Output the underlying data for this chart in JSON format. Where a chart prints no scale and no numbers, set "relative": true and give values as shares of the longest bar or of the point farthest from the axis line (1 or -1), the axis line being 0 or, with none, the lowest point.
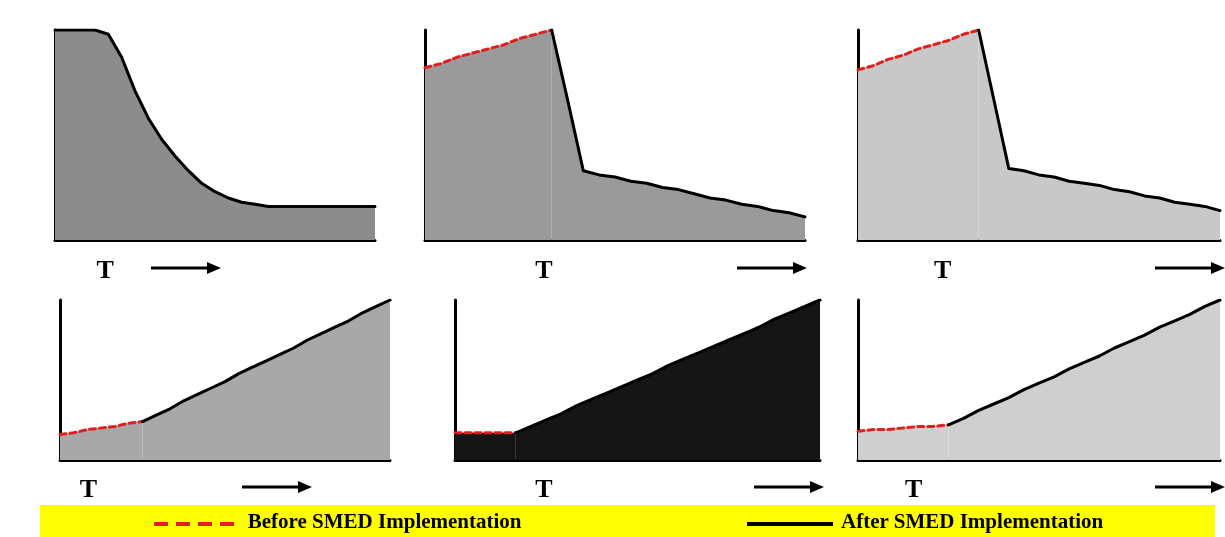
{
  "chart_data": [
    {
      "type": "area",
      "relative": true,
      "xlabel": "T",
      "grid": false,
      "legend": false,
      "categories": [
        null,
        null,
        null,
        null,
        null,
        null,
        null,
        null,
        null,
        null,
        null,
        null,
        null,
        null,
        null,
        null,
        null,
        null,
        null,
        null,
        null,
        null,
        null,
        null,
        null
      ],
      "series": [
        {
          "color": "#000000",
          "line_style": "solid",
          "values": [
            1,
            1,
            1,
            1,
            0.98,
            0.87,
            0.71,
            0.58,
            0.48,
            0.4,
            0.33,
            0.27,
            0.23,
            0.2,
            0.18,
            0.17,
            0.16,
            0.16,
            0.16,
            0.16,
            0.16,
            0.16,
            0.16,
            0.16,
            0.16
          ]
        }
      ]
    },
    {
      "type": "area",
      "relative": true,
      "xlabel": "T",
      "grid": false,
      "legend": false,
      "categories": [
        null,
        null,
        null,
        null,
        null,
        null,
        null,
        null,
        null,
        null,
        null,
        null,
        null,
        null,
        null,
        null,
        null,
        null,
        null,
        null,
        null,
        null,
        null,
        null,
        null
      ],
      "series": [
        {
          "color": "#e02020",
          "line_style": "dashed",
          "values": [
            0.82,
            0.84,
            0.87,
            0.89,
            0.91,
            0.93,
            0.96,
            0.98,
            1,
            null,
            null,
            null,
            null,
            null,
            null,
            null,
            null,
            null,
            null,
            null,
            null,
            null,
            null,
            null,
            null
          ]
        },
        {
          "color": "#000000",
          "line_style": "solid",
          "values": [
            null,
            null,
            null,
            null,
            null,
            null,
            null,
            null,
            1,
            0.67,
            0.33,
            0.31,
            0.3,
            0.28,
            0.27,
            0.25,
            0.24,
            0.22,
            0.2,
            0.19,
            0.17,
            0.16,
            0.14,
            0.13,
            0.11
          ]
        }
      ]
    },
    {
      "type": "area",
      "relative": true,
      "xlabel": "T",
      "grid": false,
      "legend": false,
      "categories": [
        null,
        null,
        null,
        null,
        null,
        null,
        null,
        null,
        null,
        null,
        null,
        null,
        null,
        null,
        null,
        null,
        null,
        null,
        null,
        null,
        null,
        null,
        null,
        null,
        null
      ],
      "series": [
        {
          "color": "#e02020",
          "line_style": "dashed",
          "values": [
            0.81,
            0.83,
            0.86,
            0.88,
            0.91,
            0.93,
            0.95,
            0.98,
            1,
            null,
            null,
            null,
            null,
            null,
            null,
            null,
            null,
            null,
            null,
            null,
            null,
            null,
            null,
            null,
            null
          ]
        },
        {
          "color": "#000000",
          "line_style": "solid",
          "values": [
            null,
            null,
            null,
            null,
            null,
            null,
            null,
            null,
            1,
            0.67,
            0.34,
            0.33,
            0.31,
            0.3,
            0.28,
            0.27,
            0.26,
            0.24,
            0.23,
            0.21,
            0.2,
            0.18,
            0.17,
            0.16,
            0.14
          ]
        }
      ]
    },
    {
      "type": "area",
      "relative": true,
      "xlabel": "T",
      "grid": false,
      "legend": false,
      "categories": [
        null,
        null,
        null,
        null,
        null,
        null,
        null,
        null,
        null,
        null,
        null,
        null,
        null,
        null,
        null,
        null,
        null,
        null,
        null,
        null,
        null,
        null,
        null,
        null,
        null
      ],
      "series": [
        {
          "color": "#e02020",
          "line_style": "dashed",
          "values": [
            0.16,
            0.17,
            0.19,
            0.2,
            0.21,
            0.23,
            0.24,
            null,
            null,
            null,
            null,
            null,
            null,
            null,
            null,
            null,
            null,
            null,
            null,
            null,
            null,
            null,
            null,
            null,
            null
          ]
        },
        {
          "color": "#000000",
          "line_style": "solid",
          "values": [
            null,
            null,
            null,
            null,
            null,
            null,
            0.24,
            0.28,
            0.32,
            0.37,
            0.41,
            0.45,
            0.49,
            0.54,
            0.58,
            0.62,
            0.66,
            0.7,
            0.75,
            0.79,
            0.83,
            0.87,
            0.92,
            0.96,
            1
          ]
        }
      ]
    },
    {
      "type": "area",
      "relative": true,
      "xlabel": "T",
      "grid": false,
      "legend": false,
      "categories": [
        null,
        null,
        null,
        null,
        null,
        null,
        null,
        null,
        null,
        null,
        null,
        null,
        null,
        null,
        null,
        null,
        null,
        null,
        null,
        null,
        null,
        null,
        null,
        null,
        null
      ],
      "series": [
        {
          "color": "#e02020",
          "line_style": "dashed",
          "values": [
            0.17,
            0.17,
            0.17,
            0.17,
            0.17,
            null,
            null,
            null,
            null,
            null,
            null,
            null,
            null,
            null,
            null,
            null,
            null,
            null,
            null,
            null,
            null,
            null,
            null,
            null,
            null
          ]
        },
        {
          "color": "#000000",
          "line_style": "solid",
          "values": [
            null,
            null,
            null,
            null,
            0.17,
            0.21,
            0.25,
            0.29,
            0.34,
            0.38,
            0.42,
            0.46,
            0.5,
            0.54,
            0.59,
            0.63,
            0.67,
            0.71,
            0.75,
            0.79,
            0.83,
            0.88,
            0.92,
            0.96,
            1
          ]
        }
      ]
    },
    {
      "type": "area",
      "relative": true,
      "xlabel": "T",
      "grid": false,
      "legend": "bottom",
      "categories": [
        null,
        null,
        null,
        null,
        null,
        null,
        null,
        null,
        null,
        null,
        null,
        null,
        null,
        null,
        null,
        null,
        null,
        null,
        null,
        null,
        null,
        null,
        null,
        null,
        null
      ],
      "series": [
        {
          "name": "Before SMED Implementation",
          "color": "#e02020",
          "line_style": "dashed",
          "values": [
            0.18,
            0.19,
            0.19,
            0.2,
            0.21,
            0.21,
            0.22,
            null,
            null,
            null,
            null,
            null,
            null,
            null,
            null,
            null,
            null,
            null,
            null,
            null,
            null,
            null,
            null,
            null,
            null
          ]
        },
        {
          "name": "After SMED Implementation",
          "color": "#000000",
          "line_style": "solid",
          "values": [
            null,
            null,
            null,
            null,
            null,
            null,
            0.22,
            0.26,
            0.31,
            0.35,
            0.39,
            0.44,
            0.48,
            0.52,
            0.57,
            0.61,
            0.65,
            0.7,
            0.74,
            0.78,
            0.83,
            0.87,
            0.91,
            0.96,
            1
          ]
        }
      ]
    }
  ]
}
